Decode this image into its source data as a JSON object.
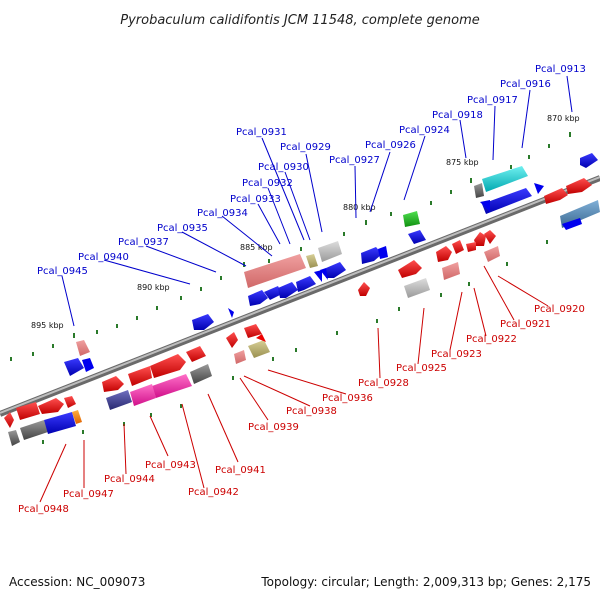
{
  "title": "Pyrobaculum calidifontis JCM 11548, complete genome",
  "footer": {
    "accession": "Accession: NC_009073",
    "summary": "Topology: circular; Length: 2,009,313 bp; Genes: 2,175"
  },
  "scale_labels": [
    "870 kbp",
    "875 kbp",
    "880 kbp",
    "885 kbp",
    "890 kbp",
    "895 kbp"
  ],
  "top_labels": [
    "Pcal_0913",
    "Pcal_0916",
    "Pcal_0917",
    "Pcal_0918",
    "Pcal_0924",
    "Pcal_0926",
    "Pcal_0927",
    "Pcal_0929",
    "Pcal_0930",
    "Pcal_0931",
    "Pcal_0932",
    "Pcal_0933",
    "Pcal_0934",
    "Pcal_0935",
    "Pcal_0937",
    "Pcal_0940",
    "Pcal_0945"
  ],
  "bottom_labels": [
    "Pcal_0920",
    "Pcal_0921",
    "Pcal_0922",
    "Pcal_0923",
    "Pcal_0925",
    "Pcal_0928",
    "Pcal_0936",
    "Pcal_0938",
    "Pcal_0939",
    "Pcal_0941",
    "Pcal_0942",
    "Pcal_0943",
    "Pcal_0944",
    "Pcal_0947",
    "Pcal_0948"
  ],
  "colors": {
    "backbone": "#8a8a8a",
    "forward_cds": "#0000ee",
    "reverse_cds": "#ee0000",
    "top_label": "#0000cc",
    "bottom_label": "#cc0000",
    "tick": "#2a7a2a"
  }
}
